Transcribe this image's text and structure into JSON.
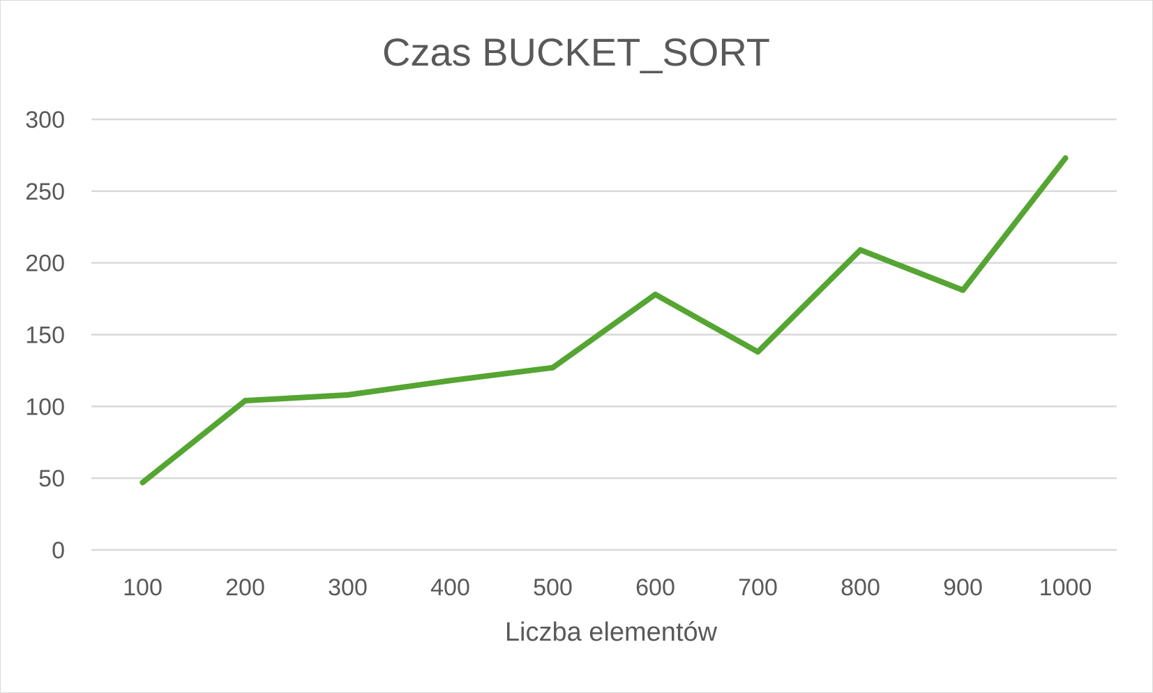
{
  "chart_data": {
    "type": "line",
    "title": "Czas BUCKET_SORT",
    "xlabel": "Liczba elementów",
    "ylabel": "",
    "categories": [
      "100",
      "200",
      "300",
      "400",
      "500",
      "600",
      "700",
      "800",
      "900",
      "1000"
    ],
    "series": [
      {
        "values": [
          47,
          104,
          108,
          118,
          127,
          178,
          138,
          209,
          181,
          273
        ],
        "color": "#55a532"
      }
    ],
    "ylim": [
      0,
      300
    ],
    "yticks": [
      "0",
      "50",
      "100",
      "150",
      "200",
      "250",
      "300"
    ],
    "grid": true,
    "legend": "none"
  }
}
